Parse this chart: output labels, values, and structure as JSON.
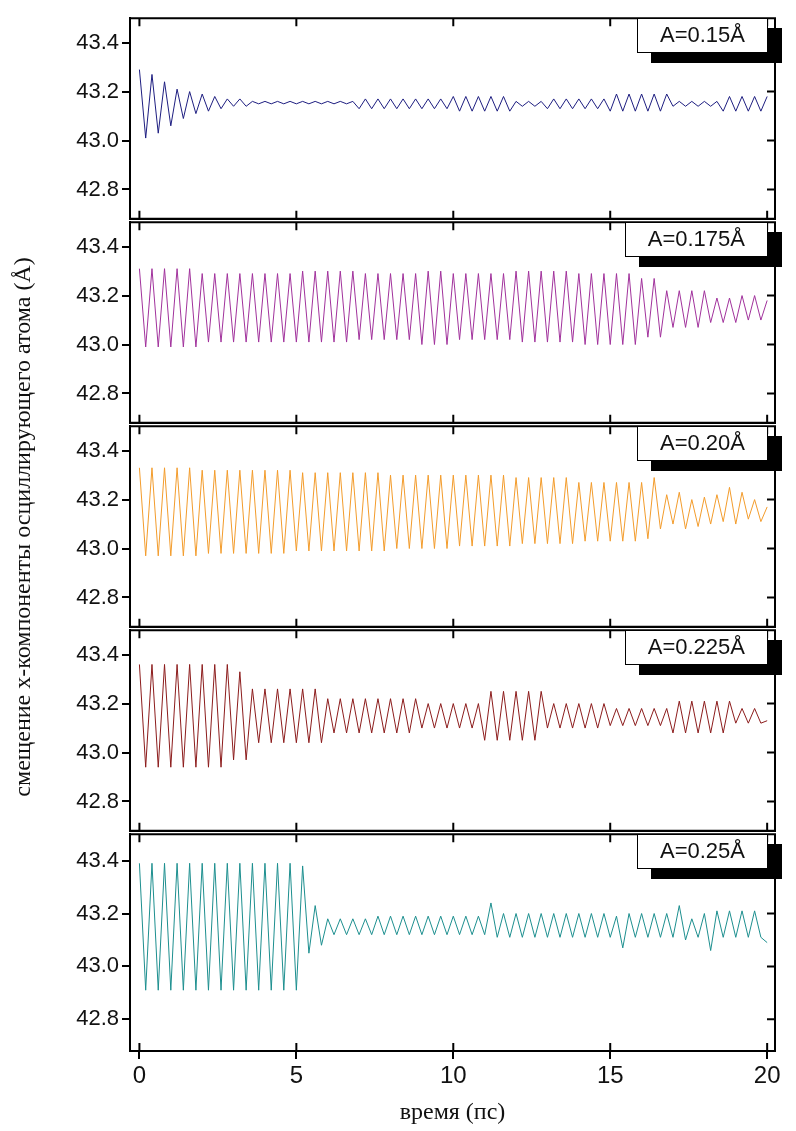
{
  "chart_data": [
    {
      "type": "line",
      "annotations": [
        "A=0.15Å"
      ],
      "xlim": [
        -0.3,
        20.25
      ],
      "xticks": [
        0,
        5,
        10,
        15,
        20
      ],
      "ylim": [
        42.68,
        43.5
      ],
      "yticks": [
        {
          "value": 42.8,
          "label": "42.8"
        },
        {
          "value": 43,
          "label": "43.0"
        },
        {
          "value": 43.2,
          "label": "43.2"
        },
        {
          "value": 43.4,
          "label": "43.4"
        }
      ],
      "tick_labels": "y",
      "x": [
        0,
        0.2,
        0.4,
        0.6,
        0.8,
        1,
        1.2,
        1.4,
        1.6,
        1.8,
        2,
        2.2,
        2.4,
        2.6,
        2.8,
        3,
        3.2,
        3.4,
        3.6,
        3.8,
        4,
        4.2,
        4.4,
        4.6,
        4.8,
        5,
        5.2,
        5.4,
        5.6,
        5.8,
        6,
        6.2,
        6.4,
        6.6,
        6.8,
        7,
        7.2,
        7.4,
        7.6,
        7.8,
        8,
        8.2,
        8.4,
        8.6,
        8.8,
        9,
        9.2,
        9.4,
        9.6,
        9.8,
        10,
        10.2,
        10.4,
        10.6,
        10.8,
        11,
        11.2,
        11.4,
        11.6,
        11.8,
        12,
        12.2,
        12.4,
        12.6,
        12.8,
        13,
        13.2,
        13.4,
        13.6,
        13.8,
        14,
        14.2,
        14.4,
        14.6,
        14.8,
        15,
        15.2,
        15.4,
        15.6,
        15.8,
        16,
        16.2,
        16.4,
        16.6,
        16.8,
        17,
        17.2,
        17.4,
        17.6,
        17.8,
        18,
        18.2,
        18.4,
        18.6,
        18.8,
        19,
        19.2,
        19.4,
        19.6,
        19.8,
        20
      ],
      "series": [
        {
          "color": "#1e1e80",
          "values": [
            43.29,
            43.01,
            43.27,
            43.03,
            43.24,
            43.06,
            43.21,
            43.09,
            43.2,
            43.11,
            43.19,
            43.12,
            43.18,
            43.13,
            43.17,
            43.14,
            43.17,
            43.14,
            43.16,
            43.15,
            43.16,
            43.15,
            43.16,
            43.15,
            43.16,
            43.15,
            43.16,
            43.15,
            43.16,
            43.15,
            43.16,
            43.15,
            43.16,
            43.15,
            43.16,
            43.13,
            43.17,
            43.13,
            43.17,
            43.13,
            43.17,
            43.13,
            43.17,
            43.13,
            43.17,
            43.13,
            43.17,
            43.13,
            43.17,
            43.13,
            43.18,
            43.12,
            43.18,
            43.12,
            43.18,
            43.12,
            43.18,
            43.12,
            43.18,
            43.12,
            43.16,
            43.14,
            43.16,
            43.14,
            43.16,
            43.13,
            43.17,
            43.13,
            43.17,
            43.13,
            43.17,
            43.13,
            43.17,
            43.13,
            43.17,
            43.12,
            43.19,
            43.12,
            43.19,
            43.12,
            43.19,
            43.12,
            43.19,
            43.12,
            43.19,
            43.14,
            43.16,
            43.14,
            43.16,
            43.14,
            43.16,
            43.14,
            43.16,
            43.12,
            43.18,
            43.12,
            43.18,
            43.12,
            43.18,
            43.12,
            43.18
          ]
        }
      ]
    },
    {
      "type": "line",
      "annotations": [
        "A=0.175Å"
      ],
      "xlim": [
        -0.3,
        20.25
      ],
      "xticks": [
        0,
        5,
        10,
        15,
        20
      ],
      "ylim": [
        42.68,
        43.5
      ],
      "yticks": [
        {
          "value": 42.8,
          "label": "42.8"
        },
        {
          "value": 43,
          "label": "43.0"
        },
        {
          "value": 43.2,
          "label": "43.2"
        },
        {
          "value": 43.4,
          "label": "43.4"
        }
      ],
      "tick_labels": "y",
      "x": [
        0,
        0.2,
        0.4,
        0.6,
        0.8,
        1,
        1.2,
        1.4,
        1.6,
        1.8,
        2,
        2.2,
        2.4,
        2.6,
        2.8,
        3,
        3.2,
        3.4,
        3.6,
        3.8,
        4,
        4.2,
        4.4,
        4.6,
        4.8,
        5,
        5.2,
        5.4,
        5.6,
        5.8,
        6,
        6.2,
        6.4,
        6.6,
        6.8,
        7,
        7.2,
        7.4,
        7.6,
        7.8,
        8,
        8.2,
        8.4,
        8.6,
        8.8,
        9,
        9.2,
        9.4,
        9.6,
        9.8,
        10,
        10.2,
        10.4,
        10.6,
        10.8,
        11,
        11.2,
        11.4,
        11.6,
        11.8,
        12,
        12.2,
        12.4,
        12.6,
        12.8,
        13,
        13.2,
        13.4,
        13.6,
        13.8,
        14,
        14.2,
        14.4,
        14.6,
        14.8,
        15,
        15.2,
        15.4,
        15.6,
        15.8,
        16,
        16.2,
        16.4,
        16.6,
        16.8,
        17,
        17.2,
        17.4,
        17.6,
        17.8,
        18,
        18.2,
        18.4,
        18.6,
        18.8,
        19,
        19.2,
        19.4,
        19.6,
        19.8,
        20
      ],
      "series": [
        {
          "color": "#a1329c",
          "values": [
            43.31,
            42.99,
            43.31,
            42.99,
            43.31,
            42.99,
            43.31,
            42.99,
            43.31,
            42.99,
            43.29,
            43.01,
            43.29,
            43.01,
            43.29,
            43.01,
            43.29,
            43.01,
            43.29,
            43.01,
            43.29,
            43.01,
            43.29,
            43.01,
            43.29,
            43.01,
            43.3,
            43.01,
            43.3,
            43.01,
            43.3,
            43.01,
            43.3,
            43.01,
            43.3,
            43.02,
            43.29,
            43.02,
            43.29,
            43.02,
            43.29,
            43.02,
            43.29,
            43.02,
            43.29,
            43.0,
            43.3,
            43.0,
            43.3,
            43.0,
            43.29,
            43.02,
            43.29,
            43.02,
            43.29,
            43.02,
            43.29,
            43.02,
            43.29,
            43.02,
            43.3,
            43.01,
            43.3,
            43.01,
            43.3,
            43.01,
            43.3,
            43.01,
            43.3,
            43.01,
            43.29,
            43.0,
            43.29,
            43.0,
            43.29,
            43.0,
            43.29,
            43.0,
            43.29,
            43.0,
            43.27,
            43.03,
            43.27,
            43.03,
            43.22,
            43.07,
            43.22,
            43.07,
            43.22,
            43.07,
            43.22,
            43.09,
            43.19,
            43.09,
            43.19,
            43.09,
            43.2,
            43.1,
            43.2,
            43.1,
            43.18
          ]
        }
      ]
    },
    {
      "type": "line",
      "annotations": [
        "A=0.20Å"
      ],
      "ylabel": "смещение x-компоненты осциллирующего атома (Å)",
      "xlim": [
        -0.3,
        20.25
      ],
      "xticks": [
        0,
        5,
        10,
        15,
        20
      ],
      "ylim": [
        42.68,
        43.5
      ],
      "yticks": [
        {
          "value": 42.8,
          "label": "42.8"
        },
        {
          "value": 43,
          "label": "43.0"
        },
        {
          "value": 43.2,
          "label": "43.2"
        },
        {
          "value": 43.4,
          "label": "43.4"
        }
      ],
      "tick_labels": "y",
      "x": [
        0,
        0.2,
        0.4,
        0.6,
        0.8,
        1,
        1.2,
        1.4,
        1.6,
        1.8,
        2,
        2.2,
        2.4,
        2.6,
        2.8,
        3,
        3.2,
        3.4,
        3.6,
        3.8,
        4,
        4.2,
        4.4,
        4.6,
        4.8,
        5,
        5.2,
        5.4,
        5.6,
        5.8,
        6,
        6.2,
        6.4,
        6.6,
        6.8,
        7,
        7.2,
        7.4,
        7.6,
        7.8,
        8,
        8.2,
        8.4,
        8.6,
        8.8,
        9,
        9.2,
        9.4,
        9.6,
        9.8,
        10,
        10.2,
        10.4,
        10.6,
        10.8,
        11,
        11.2,
        11.4,
        11.6,
        11.8,
        12,
        12.2,
        12.4,
        12.6,
        12.8,
        13,
        13.2,
        13.4,
        13.6,
        13.8,
        14,
        14.2,
        14.4,
        14.6,
        14.8,
        15,
        15.2,
        15.4,
        15.6,
        15.8,
        16,
        16.2,
        16.4,
        16.6,
        16.8,
        17,
        17.2,
        17.4,
        17.6,
        17.8,
        18,
        18.2,
        18.4,
        18.6,
        18.8,
        19,
        19.2,
        19.4,
        19.6,
        19.8,
        20
      ],
      "series": [
        {
          "color": "#f39c2c",
          "values": [
            43.33,
            42.97,
            43.33,
            42.97,
            43.33,
            42.97,
            43.33,
            42.97,
            43.33,
            42.97,
            43.32,
            42.98,
            43.32,
            42.98,
            43.32,
            42.98,
            43.32,
            42.98,
            43.32,
            42.98,
            43.32,
            42.98,
            43.32,
            42.98,
            43.32,
            42.99,
            43.31,
            42.99,
            43.31,
            42.99,
            43.31,
            42.99,
            43.31,
            42.99,
            43.31,
            42.99,
            43.31,
            42.99,
            43.31,
            42.99,
            43.3,
            43.0,
            43.3,
            43.0,
            43.3,
            43.0,
            43.3,
            43.0,
            43.3,
            43.0,
            43.3,
            43.01,
            43.3,
            43.01,
            43.3,
            43.01,
            43.3,
            43.01,
            43.3,
            43.01,
            43.29,
            43.02,
            43.29,
            43.02,
            43.29,
            43.02,
            43.29,
            43.02,
            43.29,
            43.02,
            43.27,
            43.03,
            43.27,
            43.03,
            43.27,
            43.03,
            43.27,
            43.03,
            43.27,
            43.03,
            43.27,
            43.04,
            43.29,
            43.08,
            43.22,
            43.1,
            43.23,
            43.08,
            43.2,
            43.09,
            43.21,
            43.1,
            43.22,
            43.11,
            43.25,
            43.1,
            43.23,
            43.12,
            43.2,
            43.11,
            43.17
          ]
        }
      ]
    },
    {
      "type": "line",
      "annotations": [
        "A=0.225Å"
      ],
      "xlim": [
        -0.3,
        20.25
      ],
      "xticks": [
        0,
        5,
        10,
        15,
        20
      ],
      "ylim": [
        42.68,
        43.5
      ],
      "yticks": [
        {
          "value": 42.8,
          "label": "42.8"
        },
        {
          "value": 43,
          "label": "43.0"
        },
        {
          "value": 43.2,
          "label": "43.2"
        },
        {
          "value": 43.4,
          "label": "43.4"
        }
      ],
      "tick_labels": "y",
      "x": [
        0,
        0.2,
        0.4,
        0.6,
        0.8,
        1,
        1.2,
        1.4,
        1.6,
        1.8,
        2,
        2.2,
        2.4,
        2.6,
        2.8,
        3,
        3.2,
        3.4,
        3.6,
        3.8,
        4,
        4.2,
        4.4,
        4.6,
        4.8,
        5,
        5.2,
        5.4,
        5.6,
        5.8,
        6,
        6.2,
        6.4,
        6.6,
        6.8,
        7,
        7.2,
        7.4,
        7.6,
        7.8,
        8,
        8.2,
        8.4,
        8.6,
        8.8,
        9,
        9.2,
        9.4,
        9.6,
        9.8,
        10,
        10.2,
        10.4,
        10.6,
        10.8,
        11,
        11.2,
        11.4,
        11.6,
        11.8,
        12,
        12.2,
        12.4,
        12.6,
        12.8,
        13,
        13.2,
        13.4,
        13.6,
        13.8,
        14,
        14.2,
        14.4,
        14.6,
        14.8,
        15,
        15.2,
        15.4,
        15.6,
        15.8,
        16,
        16.2,
        16.4,
        16.6,
        16.8,
        17,
        17.2,
        17.4,
        17.6,
        17.8,
        18,
        18.2,
        18.4,
        18.6,
        18.8,
        19,
        19.2,
        19.4,
        19.6,
        19.8,
        20
      ],
      "series": [
        {
          "color": "#8c1c1c",
          "values": [
            43.36,
            42.94,
            43.36,
            42.94,
            43.36,
            42.94,
            43.36,
            42.94,
            43.36,
            42.94,
            43.36,
            42.94,
            43.36,
            42.94,
            43.36,
            42.97,
            43.33,
            42.97,
            43.26,
            43.04,
            43.26,
            43.04,
            43.26,
            43.04,
            43.26,
            43.04,
            43.26,
            43.04,
            43.26,
            43.04,
            43.22,
            43.08,
            43.22,
            43.08,
            43.22,
            43.08,
            43.22,
            43.08,
            43.22,
            43.08,
            43.22,
            43.08,
            43.22,
            43.08,
            43.22,
            43.1,
            43.2,
            43.1,
            43.2,
            43.1,
            43.2,
            43.1,
            43.2,
            43.1,
            43.2,
            43.05,
            43.25,
            43.05,
            43.25,
            43.05,
            43.25,
            43.05,
            43.25,
            43.05,
            43.25,
            43.1,
            43.2,
            43.1,
            43.2,
            43.1,
            43.2,
            43.1,
            43.2,
            43.1,
            43.2,
            43.11,
            43.18,
            43.11,
            43.18,
            43.11,
            43.18,
            43.11,
            43.18,
            43.11,
            43.18,
            43.08,
            43.21,
            43.08,
            43.21,
            43.08,
            43.21,
            43.08,
            43.21,
            43.08,
            43.21,
            43.12,
            43.18,
            43.12,
            43.18,
            43.12,
            43.13
          ]
        }
      ]
    },
    {
      "type": "line",
      "annotations": [
        "A=0.25Å"
      ],
      "xlabel": "время (пс)",
      "xlim": [
        -0.3,
        20.25
      ],
      "xticks": [
        0,
        5,
        10,
        15,
        20
      ],
      "ylim": [
        42.68,
        43.5
      ],
      "yticks": [
        {
          "value": 42.8,
          "label": "42.8"
        },
        {
          "value": 43,
          "label": "43.0"
        },
        {
          "value": 43.2,
          "label": "43.2"
        },
        {
          "value": 43.4,
          "label": "43.4"
        }
      ],
      "x": [
        0,
        0.2,
        0.4,
        0.6,
        0.8,
        1,
        1.2,
        1.4,
        1.6,
        1.8,
        2,
        2.2,
        2.4,
        2.6,
        2.8,
        3,
        3.2,
        3.4,
        3.6,
        3.8,
        4,
        4.2,
        4.4,
        4.6,
        4.8,
        5,
        5.2,
        5.4,
        5.6,
        5.8,
        6,
        6.2,
        6.4,
        6.6,
        6.8,
        7,
        7.2,
        7.4,
        7.6,
        7.8,
        8,
        8.2,
        8.4,
        8.6,
        8.8,
        9,
        9.2,
        9.4,
        9.6,
        9.8,
        10,
        10.2,
        10.4,
        10.6,
        10.8,
        11,
        11.2,
        11.4,
        11.6,
        11.8,
        12,
        12.2,
        12.4,
        12.6,
        12.8,
        13,
        13.2,
        13.4,
        13.6,
        13.8,
        14,
        14.2,
        14.4,
        14.6,
        14.8,
        15,
        15.2,
        15.4,
        15.6,
        15.8,
        16,
        16.2,
        16.4,
        16.6,
        16.8,
        17,
        17.2,
        17.4,
        17.6,
        17.8,
        18,
        18.2,
        18.4,
        18.6,
        18.8,
        19,
        19.2,
        19.4,
        19.6,
        19.8,
        20
      ],
      "series": [
        {
          "color": "#1d8f8f",
          "values": [
            43.39,
            42.91,
            43.39,
            42.91,
            43.39,
            42.91,
            43.39,
            42.91,
            43.39,
            42.91,
            43.39,
            42.91,
            43.39,
            42.91,
            43.39,
            42.91,
            43.39,
            42.91,
            43.39,
            42.91,
            43.39,
            42.91,
            43.39,
            42.91,
            43.39,
            42.91,
            43.38,
            43.05,
            43.23,
            43.08,
            43.18,
            43.12,
            43.18,
            43.12,
            43.18,
            43.12,
            43.18,
            43.12,
            43.19,
            43.12,
            43.19,
            43.12,
            43.19,
            43.12,
            43.19,
            43.12,
            43.19,
            43.12,
            43.19,
            43.12,
            43.19,
            43.12,
            43.19,
            43.12,
            43.19,
            43.12,
            43.24,
            43.11,
            43.2,
            43.11,
            43.2,
            43.11,
            43.2,
            43.11,
            43.2,
            43.11,
            43.2,
            43.11,
            43.2,
            43.11,
            43.2,
            43.11,
            43.2,
            43.11,
            43.2,
            43.11,
            43.19,
            43.07,
            43.2,
            43.11,
            43.2,
            43.11,
            43.2,
            43.11,
            43.2,
            43.11,
            43.23,
            43.1,
            43.18,
            43.11,
            43.2,
            43.06,
            43.21,
            43.11,
            43.21,
            43.11,
            43.21,
            43.11,
            43.21,
            43.11,
            43.09
          ]
        }
      ]
    }
  ]
}
